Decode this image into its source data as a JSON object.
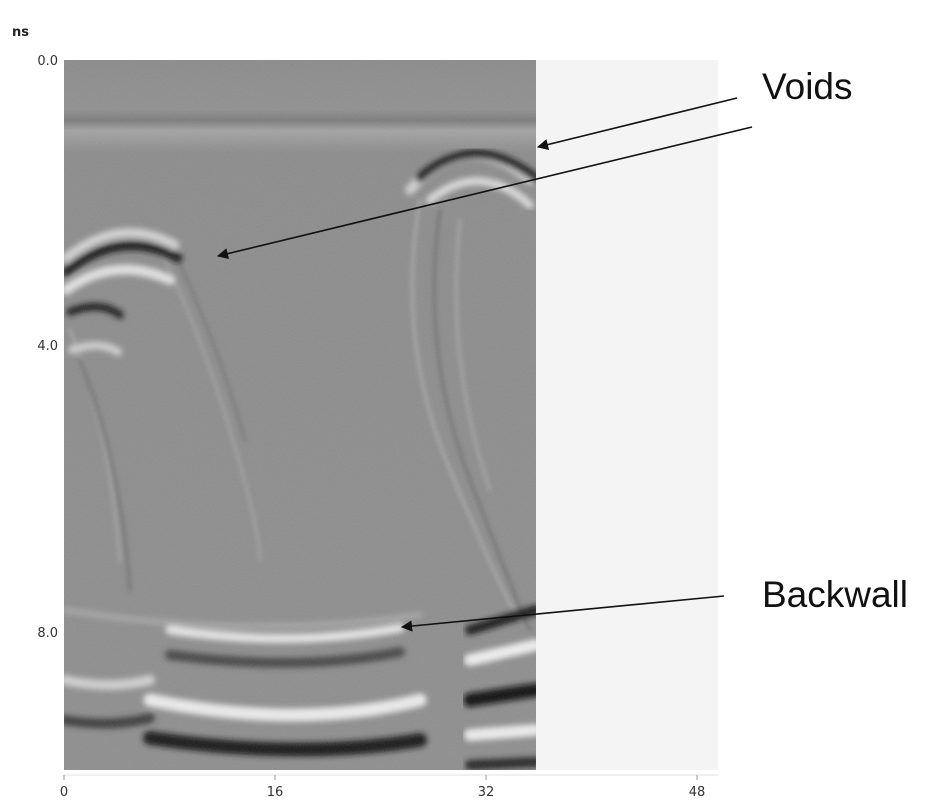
{
  "axis": {
    "unit": "ns",
    "y_ticks": [
      "0.0",
      "4.0",
      "8.0"
    ],
    "x_ticks": [
      "0",
      "16",
      "32",
      "48"
    ]
  },
  "annotations": {
    "voids": "Voids",
    "backwall": "Backwall"
  },
  "colors": {
    "scan_background": "#8d8d8d",
    "empty_region": "#f4f4f4",
    "arrow": "#111111",
    "text": "#111111"
  }
}
